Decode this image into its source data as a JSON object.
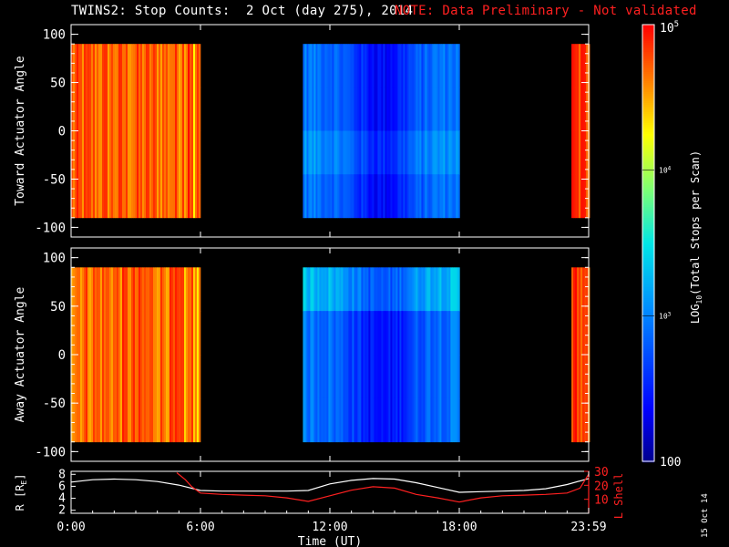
{
  "title": {
    "main": "TWINS2: Stop Counts:  2 Oct (day 275), 2014",
    "note": "NOTE: Data Preliminary - Not validated"
  },
  "stamp": "15 Oct 14",
  "colors": {
    "background": "#000000",
    "axes": "#ffffff",
    "note": "#ff2020",
    "r_line": "#ffffff",
    "lshell_line": "#ff2020"
  },
  "chart_data": [
    {
      "type": "heatmap",
      "panel": "toward",
      "ylabel": "Toward Actuator Angle",
      "ylim": [
        -110,
        110
      ],
      "yticks": [
        "100",
        "50",
        "0",
        "-50",
        "-100"
      ],
      "ytick_values": [
        100,
        50,
        0,
        -50,
        -100
      ],
      "y_data_range": [
        -90,
        90
      ],
      "xlim_hours": [
        0,
        24
      ],
      "data_intervals_hours": [
        [
          0,
          6
        ],
        [
          10.75,
          18
        ],
        [
          23.2,
          24
        ]
      ],
      "approx_log10_counts_by_interval": [
        4.7,
        2.6,
        4.8
      ]
    },
    {
      "type": "heatmap",
      "panel": "away",
      "ylabel": "Away Actuator Angle",
      "ylim": [
        -110,
        110
      ],
      "yticks": [
        "100",
        "50",
        "0",
        "-50",
        "-100"
      ],
      "ytick_values": [
        100,
        50,
        0,
        -50,
        -100
      ],
      "y_data_range": [
        -90,
        90
      ],
      "xlim_hours": [
        0,
        24
      ],
      "data_intervals_hours": [
        [
          0,
          6
        ],
        [
          10.75,
          18
        ],
        [
          23.2,
          24
        ]
      ],
      "approx_log10_counts_by_interval": [
        4.7,
        2.6,
        4.8
      ]
    },
    {
      "type": "line",
      "panel": "orbit",
      "ylabel_left": "R [R",
      "ylabel_left_sub": "E",
      "ylabel_left_end": "]",
      "ylabel_right": "L Shell",
      "xlabel": "Time (UT)",
      "xticks": [
        "0:00",
        "6:00",
        "12:00",
        "18:00",
        "23:59"
      ],
      "xtick_hours": [
        0,
        6,
        12,
        18,
        24
      ],
      "yticks_left": [
        "8",
        "6",
        "4",
        "2"
      ],
      "ytick_left_values": [
        8,
        6,
        4,
        2
      ],
      "ylim_left": [
        1.5,
        8.5
      ],
      "yticks_right": [
        "30",
        "20",
        "10"
      ],
      "ytick_right_values": [
        30,
        20,
        10
      ],
      "ylim_right": [
        0,
        30
      ],
      "series": [
        {
          "axis": "left",
          "x": [
            0,
            1,
            2,
            3,
            4,
            5,
            6,
            7,
            8,
            9,
            10,
            11,
            12,
            13,
            14,
            15,
            16,
            17,
            18,
            19,
            20,
            21,
            22,
            23,
            24
          ],
          "y": [
            6.7,
            7.1,
            7.2,
            7.1,
            6.8,
            6.2,
            5.3,
            5.2,
            5.2,
            5.2,
            5.2,
            5.3,
            6.4,
            7.0,
            7.3,
            7.2,
            6.6,
            5.8,
            5.0,
            5.1,
            5.2,
            5.3,
            5.6,
            6.3,
            7.3
          ]
        },
        {
          "axis": "right",
          "x": [
            4.9,
            5.3,
            5.6,
            6.0,
            7,
            8,
            9,
            10,
            11,
            12,
            13,
            14,
            15,
            16,
            17,
            18,
            19,
            20,
            21,
            22,
            23,
            23.6,
            24
          ],
          "y": [
            29.0,
            24.0,
            19.0,
            14.5,
            13.5,
            13.0,
            12.5,
            11.0,
            8.5,
            12.5,
            16.5,
            19.0,
            18.0,
            13.5,
            11.0,
            8.0,
            11.0,
            12.5,
            13.0,
            13.5,
            14.5,
            18.0,
            28.0
          ]
        }
      ]
    },
    {
      "type": "heatmap",
      "panel": "colorbar",
      "label": "LOG",
      "label_sub": "10",
      "label_end": "(Total Stops per Scan)",
      "tick_labels": [
        "10",
        "10",
        "100"
      ],
      "tick_exponents": [
        "5",
        "4",
        "3"
      ],
      "minor_labels": [
        "10",
        "10"
      ],
      "minor_exponents": [
        "4",
        "3"
      ],
      "range_log10": [
        2,
        5
      ]
    }
  ]
}
